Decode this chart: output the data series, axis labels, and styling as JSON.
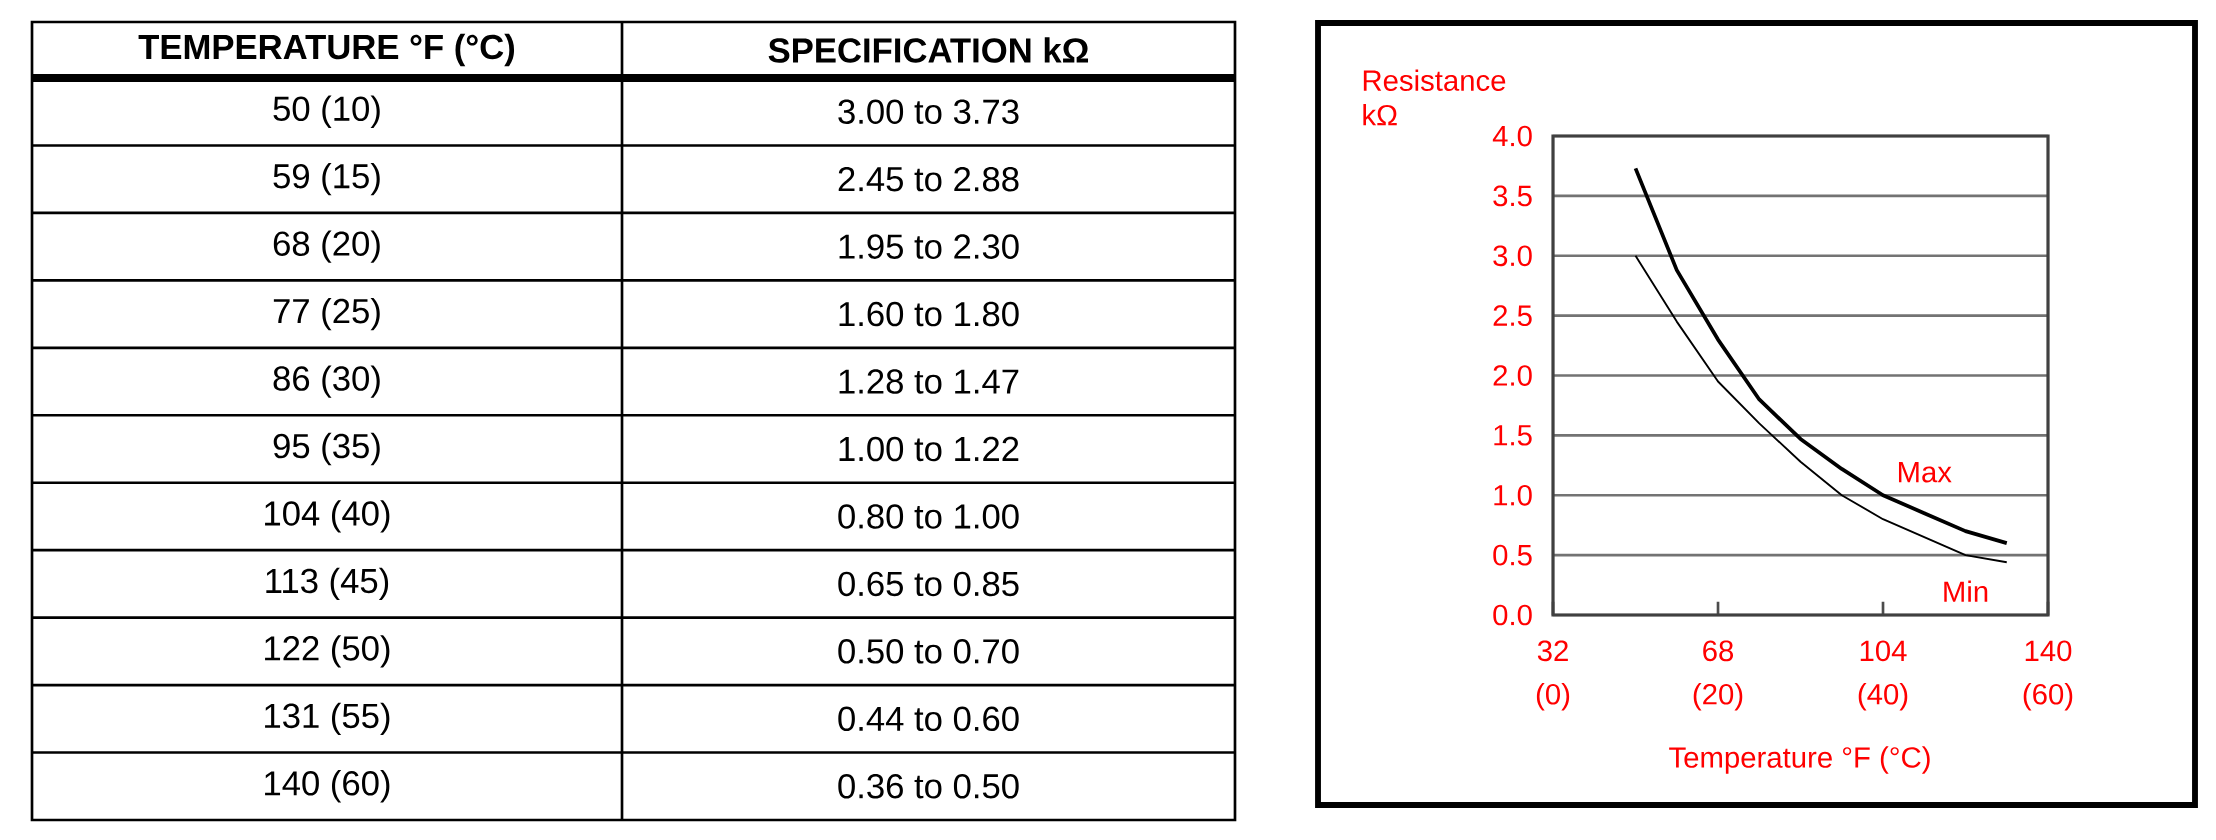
{
  "chart_data": [
    {
      "type": "other",
      "annotations": [
        "TEMPERATURE °F (°C)",
        "SPECIFICATION kΩ",
        "50 (10)",
        "3.00 to 3.73",
        "59 (15)",
        "2.45 to 2.88",
        "68 (20)",
        "1.95 to 2.30",
        "77 (25)",
        "1.60 to 1.80",
        "86 (30)",
        "1.28 to 1.47",
        "95 (35)",
        "1.00 to 1.22",
        "104 (40)",
        "0.80 to 1.00",
        "113 (45)",
        "0.65 to 0.85",
        "122 (50)",
        "0.50 to 0.70",
        "131 (55)",
        "0.44 to 0.60",
        "140 (60)",
        "0.36 to 0.50"
      ]
    },
    {
      "type": "line",
      "xlabel": "Temperature °F (°C)",
      "ylabel": "Resistance kΩ",
      "x": [
        50,
        59,
        68,
        77,
        86,
        95,
        104,
        113,
        122,
        131
      ],
      "series": [
        {
          "name": "Max",
          "color": "#000000",
          "values": [
            3.73,
            2.88,
            2.3,
            1.8,
            1.47,
            1.22,
            1.0,
            0.85,
            0.7,
            0.6
          ]
        },
        {
          "name": "Min",
          "color": "#000000",
          "values": [
            3.0,
            2.45,
            1.95,
            1.6,
            1.28,
            1.0,
            0.8,
            0.65,
            0.5,
            0.44
          ]
        }
      ],
      "xlim": [
        32,
        140
      ],
      "xticks": [
        32,
        68,
        104,
        140
      ],
      "x2lim": [
        0,
        60
      ],
      "x2ticks": [
        {
          "value": 0,
          "label": "(0)"
        },
        {
          "value": 20,
          "label": "(20)"
        },
        {
          "value": 40,
          "label": "(40)"
        },
        {
          "value": 60,
          "label": "(60)"
        }
      ],
      "ylim": [
        0,
        4
      ],
      "yticks": [
        {
          "value": 0,
          "label": "0.0"
        },
        {
          "value": 0.5,
          "label": "0.5"
        },
        {
          "value": 1,
          "label": "1.0"
        },
        {
          "value": 1.5,
          "label": "1.5"
        },
        {
          "value": 2,
          "label": "2.0"
        },
        {
          "value": 2.5,
          "label": "2.5"
        },
        {
          "value": 3,
          "label": "3.0"
        },
        {
          "value": 3.5,
          "label": "3.5"
        },
        {
          "value": 4,
          "label": "4.0"
        }
      ],
      "grid": "y",
      "line_style": "solid"
    }
  ]
}
